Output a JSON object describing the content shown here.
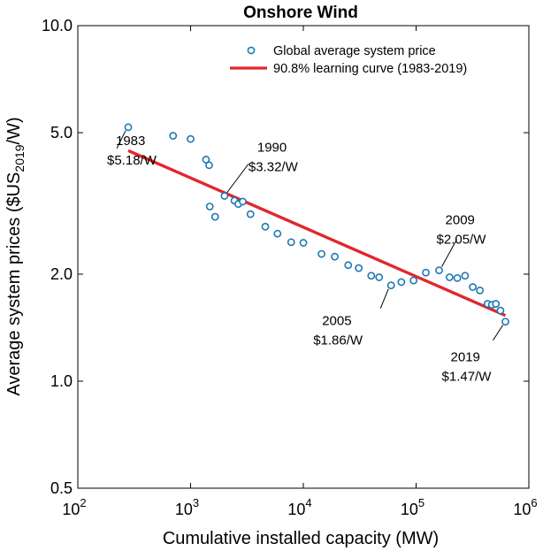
{
  "chart_data": {
    "type": "scatter",
    "title": "Onshore Wind",
    "xlabel": "Cumulative installed capacity (MW)",
    "ylabel": {
      "main": "Average system prices ($US",
      "sub": "2019",
      "end": "/W)"
    },
    "xscale": "log",
    "yscale": "log",
    "xlim": [
      100,
      1000000
    ],
    "ylim": [
      0.5,
      10
    ],
    "grid": false,
    "legend_position": "top-right",
    "x_ticks": [
      {
        "value": 100,
        "base": "10",
        "exp": "2"
      },
      {
        "value": 1000,
        "base": "10",
        "exp": "3"
      },
      {
        "value": 10000,
        "base": "10",
        "exp": "4"
      },
      {
        "value": 100000,
        "base": "10",
        "exp": "5"
      },
      {
        "value": 1000000,
        "base": "10",
        "exp": "6"
      }
    ],
    "y_ticks": [
      {
        "value": 0.5,
        "label": "0.5"
      },
      {
        "value": 1.0,
        "label": "1.0"
      },
      {
        "value": 2.0,
        "label": "2.0"
      },
      {
        "value": 5.0,
        "label": "5.0"
      },
      {
        "value": 10.0,
        "label": "10.0"
      }
    ],
    "series": [
      {
        "name": "Global average system price",
        "kind": "scatter",
        "color": "#1f78b4",
        "points": [
          {
            "x": 280,
            "y": 5.18
          },
          {
            "x": 700,
            "y": 4.9
          },
          {
            "x": 1000,
            "y": 4.8
          },
          {
            "x": 1370,
            "y": 4.2
          },
          {
            "x": 1460,
            "y": 4.05
          },
          {
            "x": 1480,
            "y": 3.1
          },
          {
            "x": 1650,
            "y": 2.9
          },
          {
            "x": 2000,
            "y": 3.32
          },
          {
            "x": 2450,
            "y": 3.22
          },
          {
            "x": 2650,
            "y": 3.15
          },
          {
            "x": 2900,
            "y": 3.2
          },
          {
            "x": 3400,
            "y": 2.95
          },
          {
            "x": 4600,
            "y": 2.72
          },
          {
            "x": 5900,
            "y": 2.6
          },
          {
            "x": 7800,
            "y": 2.46
          },
          {
            "x": 10000,
            "y": 2.45
          },
          {
            "x": 14500,
            "y": 2.28
          },
          {
            "x": 19000,
            "y": 2.24
          },
          {
            "x": 25000,
            "y": 2.12
          },
          {
            "x": 31000,
            "y": 2.08
          },
          {
            "x": 40000,
            "y": 1.98
          },
          {
            "x": 47000,
            "y": 1.96
          },
          {
            "x": 60000,
            "y": 1.86
          },
          {
            "x": 74000,
            "y": 1.9
          },
          {
            "x": 95000,
            "y": 1.92
          },
          {
            "x": 122000,
            "y": 2.02
          },
          {
            "x": 160000,
            "y": 2.05
          },
          {
            "x": 198000,
            "y": 1.96
          },
          {
            "x": 232000,
            "y": 1.95
          },
          {
            "x": 272000,
            "y": 1.98
          },
          {
            "x": 318000,
            "y": 1.84
          },
          {
            "x": 368000,
            "y": 1.8
          },
          {
            "x": 430000,
            "y": 1.65
          },
          {
            "x": 470000,
            "y": 1.64
          },
          {
            "x": 510000,
            "y": 1.65
          },
          {
            "x": 560000,
            "y": 1.58
          },
          {
            "x": 620000,
            "y": 1.47
          }
        ]
      },
      {
        "name": "90.8% learning curve (1983-2019)",
        "kind": "line",
        "color": "#e0282c",
        "points": [
          {
            "x": 280,
            "y": 4.45
          },
          {
            "x": 620000,
            "y": 1.53
          }
        ]
      }
    ],
    "annotations": [
      {
        "year": "1983",
        "price": "$5.18/W",
        "x": 280,
        "y": 5.18,
        "dx": -13,
        "dy": 24,
        "text_dx": -24,
        "text_dy": 6,
        "anchor": "start"
      },
      {
        "year": "1990",
        "price": "$3.32/W",
        "x": 2000,
        "y": 3.32,
        "dx": 27,
        "dy": -36,
        "text_dx": 27,
        "text_dy": -64,
        "anchor": "start"
      },
      {
        "year": "2005",
        "price": "$1.86/W",
        "x": 60000,
        "y": 1.86,
        "dx": -12,
        "dy": 26,
        "text_dx": -88,
        "text_dy": 31,
        "anchor": "start"
      },
      {
        "year": "2009",
        "price": "$2.05/W",
        "x": 160000,
        "y": 2.05,
        "dx": 20,
        "dy": -35,
        "text_dx": -3,
        "text_dy": -66,
        "anchor": "start"
      },
      {
        "year": "2019",
        "price": "$1.47/W",
        "x": 620000,
        "y": 1.47,
        "dx": -14,
        "dy": 21,
        "text_dx": -72,
        "text_dy": 31,
        "anchor": "start"
      }
    ]
  }
}
